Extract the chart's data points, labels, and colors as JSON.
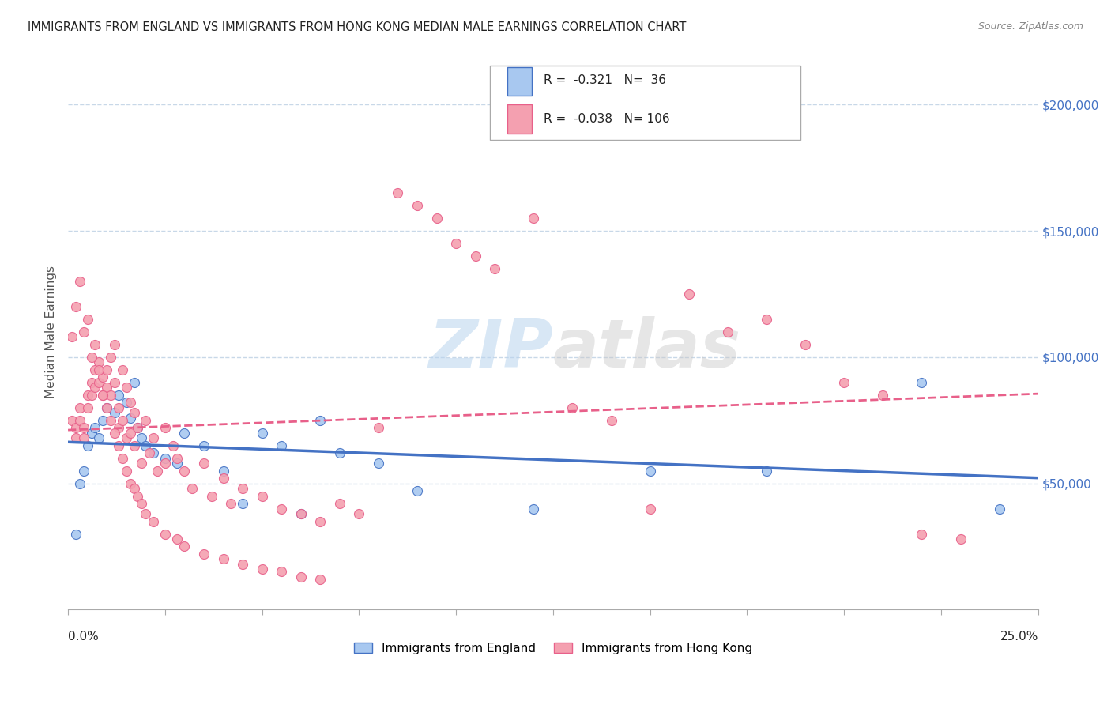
{
  "title": "IMMIGRANTS FROM ENGLAND VS IMMIGRANTS FROM HONG KONG MEDIAN MALE EARNINGS CORRELATION CHART",
  "source": "Source: ZipAtlas.com",
  "ylabel": "Median Male Earnings",
  "watermark_zip": "ZIP",
  "watermark_atlas": "atlas",
  "legend_label1": "Immigrants from England",
  "legend_label2": "Immigrants from Hong Kong",
  "england_color": "#a8c8f0",
  "hk_color": "#f4a0b0",
  "england_line_color": "#4472c4",
  "hk_line_color": "#e8608a",
  "xlim": [
    0,
    0.25
  ],
  "ylim": [
    0,
    220000
  ],
  "background_color": "#ffffff",
  "grid_color": "#c8d8e8",
  "england_x": [
    0.002,
    0.003,
    0.004,
    0.005,
    0.006,
    0.007,
    0.008,
    0.009,
    0.01,
    0.012,
    0.013,
    0.015,
    0.016,
    0.017,
    0.018,
    0.019,
    0.02,
    0.022,
    0.025,
    0.028,
    0.03,
    0.035,
    0.04,
    0.045,
    0.05,
    0.055,
    0.06,
    0.065,
    0.07,
    0.08,
    0.09,
    0.12,
    0.15,
    0.18,
    0.22,
    0.24
  ],
  "england_y": [
    30000,
    50000,
    55000,
    65000,
    70000,
    72000,
    68000,
    75000,
    80000,
    78000,
    85000,
    82000,
    76000,
    90000,
    72000,
    68000,
    65000,
    62000,
    60000,
    58000,
    70000,
    65000,
    55000,
    42000,
    70000,
    65000,
    38000,
    75000,
    62000,
    58000,
    47000,
    40000,
    55000,
    55000,
    90000,
    40000
  ],
  "hk_x": [
    0.001,
    0.002,
    0.002,
    0.003,
    0.003,
    0.004,
    0.004,
    0.005,
    0.005,
    0.006,
    0.006,
    0.007,
    0.007,
    0.008,
    0.008,
    0.009,
    0.009,
    0.01,
    0.01,
    0.011,
    0.011,
    0.012,
    0.012,
    0.013,
    0.013,
    0.014,
    0.014,
    0.015,
    0.015,
    0.016,
    0.016,
    0.017,
    0.017,
    0.018,
    0.019,
    0.02,
    0.021,
    0.022,
    0.023,
    0.025,
    0.025,
    0.027,
    0.028,
    0.03,
    0.032,
    0.035,
    0.037,
    0.04,
    0.042,
    0.045,
    0.05,
    0.055,
    0.06,
    0.065,
    0.07,
    0.075,
    0.08,
    0.085,
    0.09,
    0.095,
    0.1,
    0.105,
    0.11,
    0.12,
    0.13,
    0.14,
    0.15,
    0.16,
    0.17,
    0.18,
    0.19,
    0.2,
    0.21,
    0.22,
    0.23,
    0.001,
    0.002,
    0.003,
    0.004,
    0.005,
    0.006,
    0.007,
    0.008,
    0.009,
    0.01,
    0.011,
    0.012,
    0.013,
    0.014,
    0.015,
    0.016,
    0.017,
    0.018,
    0.019,
    0.02,
    0.022,
    0.025,
    0.028,
    0.03,
    0.035,
    0.04,
    0.045,
    0.05,
    0.055,
    0.06,
    0.065
  ],
  "hk_y": [
    75000,
    72000,
    68000,
    80000,
    75000,
    72000,
    68000,
    85000,
    80000,
    90000,
    85000,
    95000,
    88000,
    98000,
    90000,
    92000,
    85000,
    95000,
    88000,
    100000,
    85000,
    105000,
    90000,
    80000,
    72000,
    95000,
    75000,
    88000,
    68000,
    82000,
    70000,
    78000,
    65000,
    72000,
    58000,
    75000,
    62000,
    68000,
    55000,
    72000,
    58000,
    65000,
    60000,
    55000,
    48000,
    58000,
    45000,
    52000,
    42000,
    48000,
    45000,
    40000,
    38000,
    35000,
    42000,
    38000,
    72000,
    165000,
    160000,
    155000,
    145000,
    140000,
    135000,
    155000,
    80000,
    75000,
    40000,
    125000,
    110000,
    115000,
    105000,
    90000,
    85000,
    30000,
    28000,
    108000,
    120000,
    130000,
    110000,
    115000,
    100000,
    105000,
    95000,
    85000,
    80000,
    75000,
    70000,
    65000,
    60000,
    55000,
    50000,
    48000,
    45000,
    42000,
    38000,
    35000,
    30000,
    28000,
    25000,
    22000,
    20000,
    18000,
    16000,
    15000,
    13000,
    12000
  ]
}
